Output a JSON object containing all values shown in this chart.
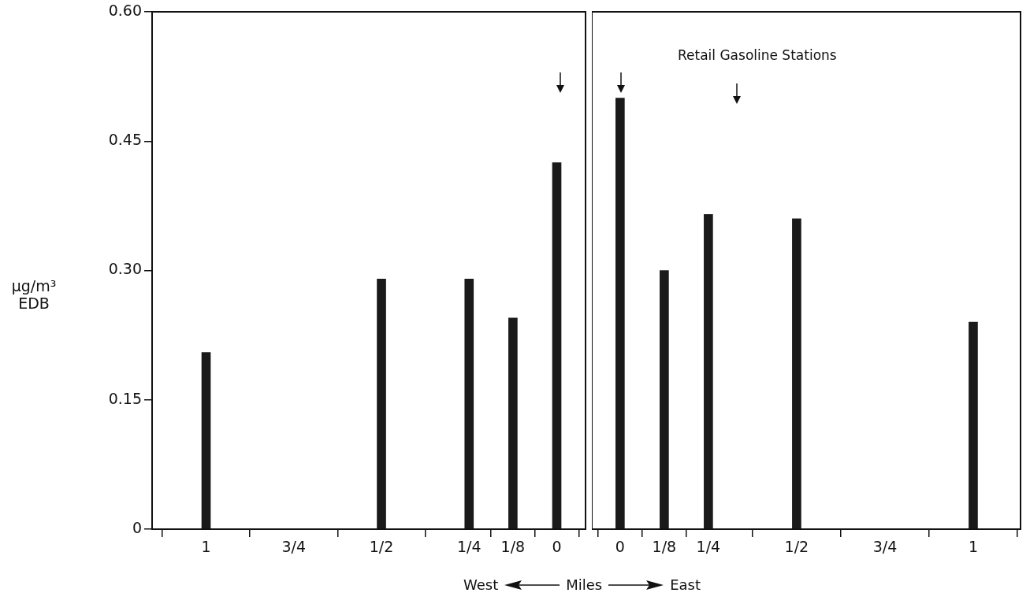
{
  "chart_data": [
    {
      "type": "bar",
      "xlabel": "West",
      "ylabel": "μg/m³ EDB",
      "annotations": [
        "Miles"
      ],
      "x": [
        1,
        0.5,
        0.25,
        0.125,
        0
      ],
      "values": [
        0.205,
        0.29,
        0.29,
        0.245,
        0.425
      ],
      "color": "#1a1a1a",
      "xlim": [
        1.154,
        -0.082
      ],
      "xticks": [
        {
          "value": 1,
          "label": "1"
        },
        {
          "value": 0.75,
          "label": "3/4"
        },
        {
          "value": 0.5,
          "label": "1/2"
        },
        {
          "value": 0.25,
          "label": "1/4"
        },
        {
          "value": 0.125,
          "label": "1/8"
        },
        {
          "value": 0,
          "label": "0"
        }
      ],
      "ylim": [
        0,
        0.6
      ],
      "yticks": [
        {
          "value": 0,
          "label": "0"
        },
        {
          "value": 0.15,
          "label": "0.15"
        },
        {
          "value": 0.3,
          "label": "0.30"
        },
        {
          "value": 0.45,
          "label": "0.45"
        },
        {
          "value": 0.6,
          "label": "0.60"
        }
      ]
    },
    {
      "type": "bar",
      "xlabel": "East",
      "annotations": [
        "Retail Gasoline Stations"
      ],
      "tick_labels": "x",
      "x": [
        0,
        0.125,
        0.25,
        0.5,
        1
      ],
      "values": [
        0.5,
        0.3,
        0.365,
        0.36,
        0.24
      ],
      "color": "#1a1a1a",
      "xlim": [
        -0.08,
        1.134
      ],
      "xticks": [
        {
          "value": 0,
          "label": "0"
        },
        {
          "value": 0.125,
          "label": "1/8"
        },
        {
          "value": 0.25,
          "label": "1/4"
        },
        {
          "value": 0.5,
          "label": "1/2"
        },
        {
          "value": 0.75,
          "label": "3/4"
        },
        {
          "value": 1,
          "label": "1"
        }
      ],
      "ylim": [
        0,
        0.6
      ]
    }
  ]
}
